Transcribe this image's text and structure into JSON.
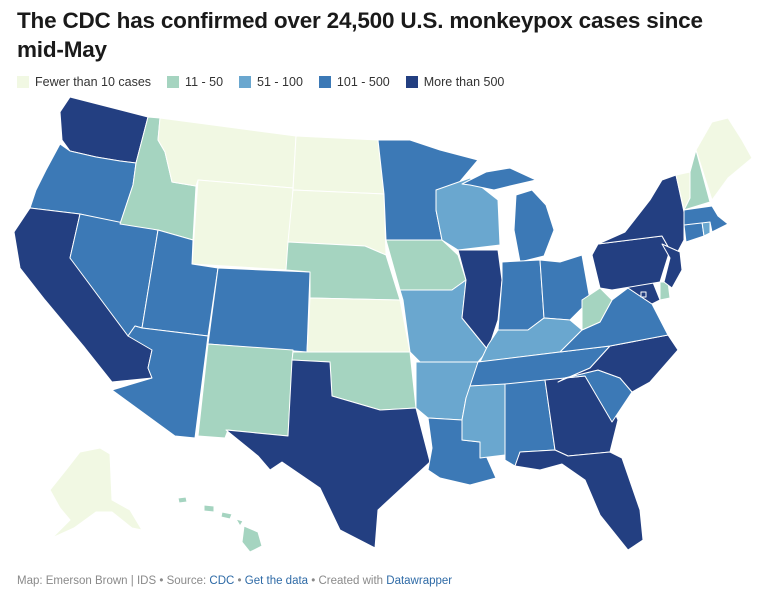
{
  "title": "The CDC has confirmed over 24,500 U.S. monkeypox cases since mid-May",
  "legend": [
    {
      "label": "Fewer than 10 cases",
      "color": "#f1f8e3"
    },
    {
      "label": "11 - 50",
      "color": "#a5d4c0"
    },
    {
      "label": "51 - 100",
      "color": "#6aa7cf"
    },
    {
      "label": "101 - 500",
      "color": "#3c79b6"
    },
    {
      "label": "More than 500",
      "color": "#233f81"
    }
  ],
  "footer": {
    "credit": "Map: Emerson Brown | IDS",
    "source_prefix": "Source:",
    "source_link": "CDC",
    "get_data": "Get the data",
    "created_prefix": "Created with",
    "tool_link": "Datawrapper",
    "separator": "•"
  },
  "states": {
    "WA": 4,
    "OR": 3,
    "CA": 4,
    "NV": 3,
    "ID": 1,
    "MT": 0,
    "WY": 0,
    "UT": 3,
    "AZ": 3,
    "CO": 3,
    "NM": 1,
    "ND": 0,
    "SD": 0,
    "NE": 1,
    "KS": 0,
    "OK": 1,
    "TX": 4,
    "MN": 3,
    "IA": 1,
    "MO": 2,
    "AR": 2,
    "LA": 3,
    "WI": 2,
    "IL": 4,
    "MS": 2,
    "MI": 3,
    "IN": 3,
    "OH": 3,
    "KY": 2,
    "TN": 3,
    "AL": 3,
    "GA": 4,
    "FL": 4,
    "SC": 3,
    "NC": 4,
    "VA": 3,
    "WV": 1,
    "MD": 4,
    "DE": 1,
    "NJ": 4,
    "PA": 4,
    "NY": 4,
    "CT": 3,
    "RI": 2,
    "MA": 3,
    "VT": 0,
    "NH": 1,
    "ME": 0,
    "DC": 4,
    "AK": 0,
    "HI": 1
  }
}
